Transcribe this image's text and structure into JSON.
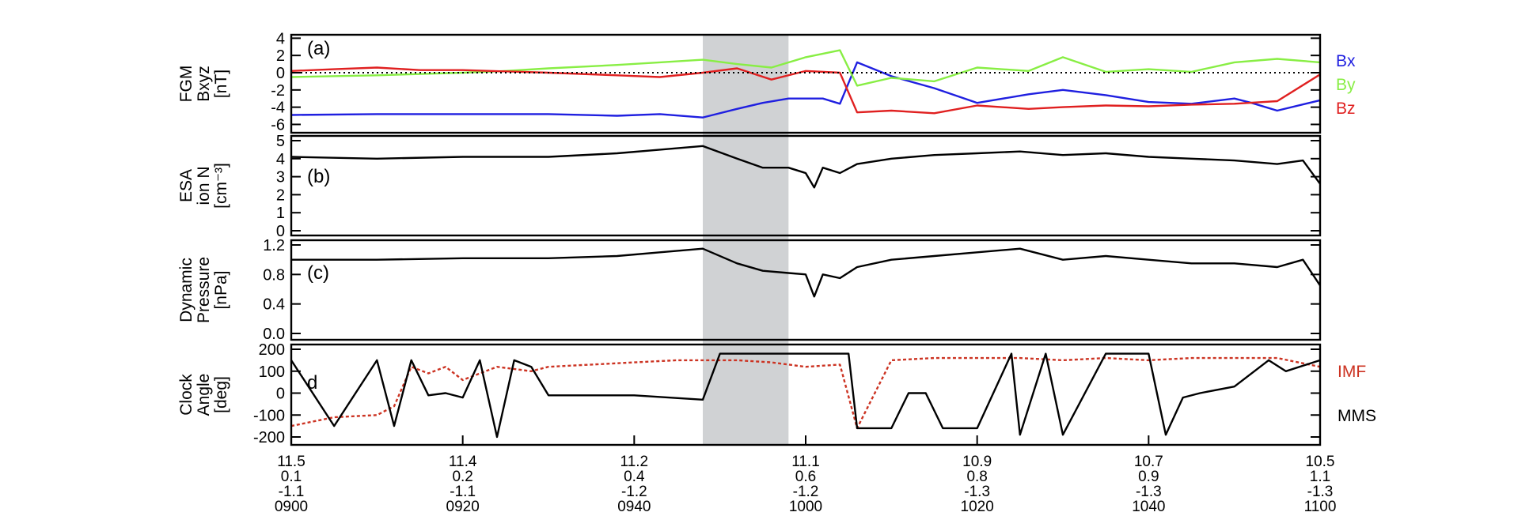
{
  "chart_data": [
    {
      "panel": "a",
      "type": "line",
      "ylabel": [
        "FGM",
        "Bxyz",
        "[nT]"
      ],
      "ylim": [
        -6.6,
        4.4
      ],
      "yticks": [
        "4",
        "2",
        "0",
        "-2",
        "-4",
        "-6"
      ],
      "panel_label": "(a)",
      "zero_line": "dotted",
      "colors": {
        "Bx": "#1f1fe0",
        "By": "#88ee44",
        "Bz": "#e02020"
      },
      "series": [
        {
          "name": "Bx",
          "x": [
            0,
            10,
            20,
            30,
            38,
            43,
            48,
            52,
            55,
            58,
            62,
            64,
            66,
            70,
            75,
            80,
            86,
            90,
            95,
            100,
            105,
            110,
            112,
            115,
            120
          ],
          "y": [
            -4.9,
            -4.8,
            -4.8,
            -4.8,
            -5.0,
            -4.8,
            -5.2,
            -4.2,
            -3.5,
            -3.0,
            -3.0,
            -3.6,
            1.2,
            -0.4,
            -1.8,
            -3.5,
            -2.5,
            -2.0,
            -2.6,
            -3.4,
            -3.6,
            -3.0,
            -3.5,
            -4.4,
            -3.2
          ]
        },
        {
          "name": "By",
          "x": [
            0,
            10,
            20,
            25,
            30,
            38,
            43,
            48,
            52,
            56,
            60,
            64,
            66,
            70,
            75,
            80,
            86,
            90,
            95,
            100,
            105,
            110,
            115,
            120
          ],
          "y": [
            -0.5,
            -0.3,
            0.0,
            0.2,
            0.5,
            0.9,
            1.2,
            1.5,
            1.0,
            0.6,
            1.8,
            2.6,
            -1.5,
            -0.6,
            -1.0,
            0.6,
            0.2,
            1.8,
            0.1,
            0.4,
            0.1,
            1.2,
            1.6,
            1.2
          ]
        },
        {
          "name": "Bz",
          "x": [
            0,
            5,
            10,
            15,
            20,
            30,
            38,
            43,
            48,
            52,
            56,
            60,
            64,
            66,
            70,
            75,
            80,
            86,
            90,
            95,
            100,
            105,
            110,
            115,
            120
          ],
          "y": [
            0.2,
            0.4,
            0.6,
            0.3,
            0.3,
            0.0,
            -0.3,
            -0.5,
            0.0,
            0.5,
            -0.8,
            0.2,
            0.0,
            -4.6,
            -4.4,
            -4.7,
            -3.8,
            -4.2,
            -4.0,
            -3.8,
            -3.9,
            -3.7,
            -3.6,
            -3.3,
            -0.2
          ]
        }
      ]
    },
    {
      "panel": "b",
      "type": "line",
      "ylabel": [
        "ESA",
        "ion N",
        "[cm⁻³]"
      ],
      "ylim": [
        0,
        5
      ],
      "yticks": [
        "5",
        "4",
        "3",
        "2",
        "1",
        "0"
      ],
      "panel_label": "(b)",
      "series": [
        {
          "name": "",
          "x": [
            0,
            10,
            20,
            30,
            38,
            43,
            48,
            52,
            55,
            58,
            60,
            61,
            62,
            64,
            66,
            70,
            75,
            80,
            85,
            90,
            95,
            100,
            105,
            110,
            115,
            118,
            120
          ],
          "y": [
            4.1,
            4.0,
            4.1,
            4.1,
            4.3,
            4.5,
            4.7,
            4.0,
            3.5,
            3.5,
            3.2,
            2.4,
            3.5,
            3.2,
            3.7,
            4.0,
            4.2,
            4.3,
            4.4,
            4.2,
            4.3,
            4.1,
            4.0,
            3.9,
            3.7,
            3.9,
            2.6
          ]
        }
      ]
    },
    {
      "panel": "c",
      "type": "line",
      "ylabel": [
        "Dynamic",
        "Pressure",
        "[nPa]"
      ],
      "ylim": [
        0,
        1.2
      ],
      "yticks": [
        "1.2",
        "0.8",
        "0.4",
        "0.0"
      ],
      "panel_label": "(c)",
      "series": [
        {
          "name": "",
          "x": [
            0,
            10,
            20,
            30,
            38,
            43,
            48,
            52,
            55,
            58,
            60,
            61,
            62,
            64,
            66,
            70,
            75,
            80,
            85,
            90,
            95,
            100,
            105,
            110,
            115,
            118,
            120
          ],
          "y": [
            1.0,
            1.0,
            1.02,
            1.02,
            1.05,
            1.1,
            1.15,
            0.95,
            0.85,
            0.82,
            0.8,
            0.5,
            0.8,
            0.75,
            0.9,
            1.0,
            1.05,
            1.1,
            1.15,
            1.0,
            1.05,
            1.0,
            0.95,
            0.95,
            0.9,
            1.0,
            0.65
          ]
        }
      ]
    },
    {
      "panel": "d",
      "type": "line",
      "ylabel": [
        "Clock",
        "Angle",
        "[deg]"
      ],
      "ylim": [
        -200,
        200
      ],
      "yticks": [
        "200",
        "100",
        "0",
        "-100",
        "-200"
      ],
      "panel_label": "d",
      "series": [
        {
          "name": "IMF",
          "color": "#cc3322",
          "dashed": true,
          "x": [
            0,
            5,
            10,
            12,
            14,
            16,
            18,
            20,
            24,
            28,
            30,
            35,
            40,
            45,
            48,
            52,
            56,
            60,
            64,
            66,
            70,
            75,
            80,
            85,
            90,
            95,
            100,
            105,
            110,
            115,
            120
          ],
          "y": [
            -150,
            -110,
            -100,
            -60,
            120,
            90,
            120,
            60,
            120,
            100,
            120,
            130,
            140,
            150,
            150,
            150,
            140,
            120,
            130,
            -160,
            150,
            160,
            160,
            160,
            150,
            160,
            150,
            160,
            160,
            160,
            120
          ]
        },
        {
          "name": "MMS",
          "color": "#000000",
          "dashed": false,
          "x": [
            0,
            5,
            10,
            12,
            14,
            16,
            18,
            20,
            22,
            24,
            26,
            28,
            30,
            35,
            40,
            48,
            50,
            55,
            60,
            65,
            66,
            70,
            72,
            74,
            76,
            80,
            84,
            85,
            88,
            90,
            95,
            100,
            102,
            104,
            106,
            110,
            114,
            116,
            120
          ],
          "y": [
            150,
            -150,
            150,
            -150,
            150,
            -10,
            0,
            -20,
            150,
            -200,
            150,
            120,
            -10,
            -10,
            -10,
            -30,
            180,
            180,
            180,
            180,
            -160,
            -160,
            0,
            0,
            -160,
            -160,
            180,
            -190,
            180,
            -190,
            180,
            180,
            -190,
            -20,
            0,
            30,
            150,
            100,
            150
          ]
        }
      ]
    }
  ],
  "highlight_band": {
    "x": [
      48,
      58
    ],
    "color": "#d0d2d4"
  },
  "legend_a": [
    {
      "label": "Bx",
      "color": "#1f1fe0"
    },
    {
      "label": "By",
      "color": "#88ee44"
    },
    {
      "label": "Bz",
      "color": "#e02020"
    }
  ],
  "legend_d": [
    {
      "label": "IMF",
      "color": "#cc3322"
    },
    {
      "label": "MMS",
      "color": "#000000"
    }
  ],
  "xaxis": {
    "xlim": [
      0,
      120
    ],
    "ticks": [
      {
        "x": 0,
        "lines": [
          "11.5",
          "0.1",
          "-1.1",
          "0900"
        ]
      },
      {
        "x": 20,
        "lines": [
          "11.4",
          "0.2",
          "-1.1",
          "0920"
        ]
      },
      {
        "x": 40,
        "lines": [
          "11.2",
          "0.4",
          "-1.2",
          "0940"
        ]
      },
      {
        "x": 60,
        "lines": [
          "11.1",
          "0.6",
          "-1.2",
          "1000"
        ]
      },
      {
        "x": 80,
        "lines": [
          "10.9",
          "0.8",
          "-1.3",
          "1020"
        ]
      },
      {
        "x": 100,
        "lines": [
          "10.7",
          "0.9",
          "-1.3",
          "1040"
        ]
      },
      {
        "x": 120,
        "lines": [
          "10.5",
          "1.1",
          "-1.3",
          "1100"
        ]
      }
    ]
  }
}
